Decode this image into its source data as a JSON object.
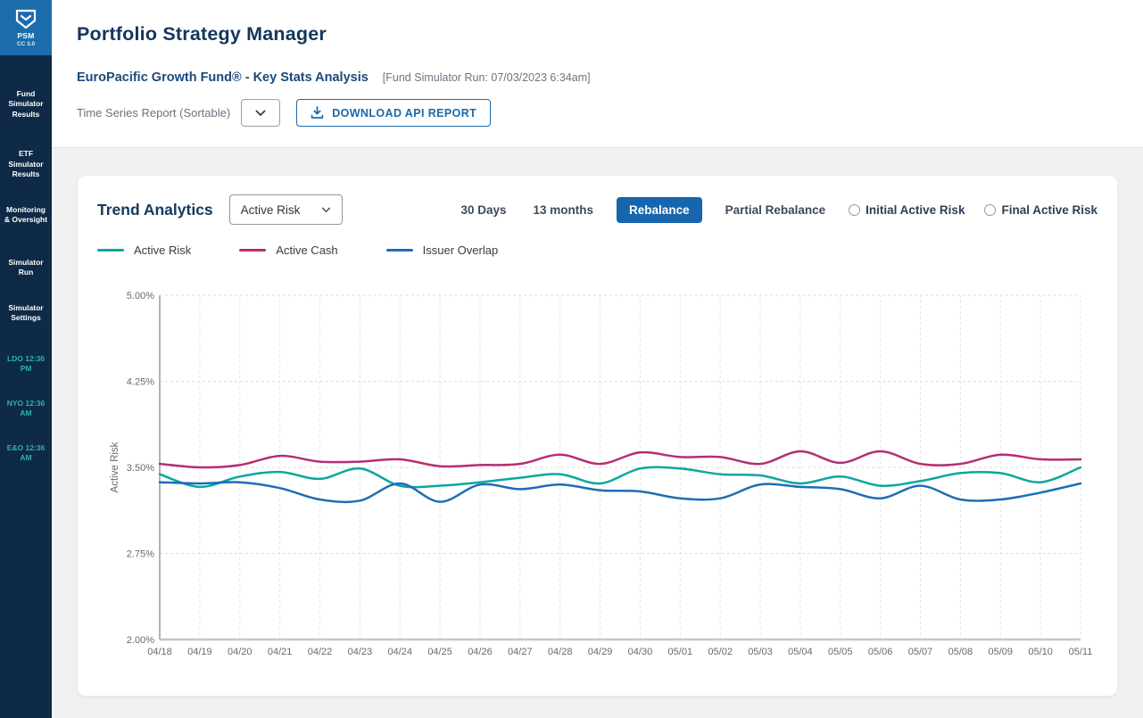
{
  "sidebar": {
    "logo": {
      "acronym": "PSM",
      "version": "CC 3.0"
    },
    "nav_items": [
      {
        "label": "Fund Simulator Results",
        "type": "nav"
      },
      {
        "label": "ETF Simulator Results",
        "type": "nav"
      },
      {
        "label": "Monitoring & Oversight",
        "type": "nav"
      },
      {
        "label": "Simulator Run",
        "type": "nav"
      },
      {
        "label": "Simulator Settings",
        "type": "nav"
      },
      {
        "label": "LDO 12:36 PM",
        "type": "clock"
      },
      {
        "label": "NYO 12:36 AM",
        "type": "clock"
      },
      {
        "label": "E&O 12:36 AM",
        "type": "clock"
      }
    ]
  },
  "header": {
    "title": "Portfolio Strategy Manager",
    "fund_name": "EuroPacific Growth Fund® - Key Stats Analysis",
    "run_info": "[Fund Simulator Run: 07/03/2023 6:34am]",
    "report_label": "Time Series Report (Sortable)",
    "download_button": "DOWNLOAD API REPORT"
  },
  "panel": {
    "title": "Trend Analytics",
    "metric_select": {
      "value": "Active Risk"
    },
    "toggles": [
      {
        "label": "30 Days",
        "active": false
      },
      {
        "label": "13 months",
        "active": false
      },
      {
        "label": "Rebalance",
        "active": true
      },
      {
        "label": "Partial Rebalance",
        "active": false
      }
    ],
    "radios": [
      {
        "label": "Initial Active Risk",
        "checked": false
      },
      {
        "label": "Final Active Risk",
        "checked": false
      }
    ]
  },
  "icons": {
    "logo": "shield-chevron",
    "download": "arrow-down-tray",
    "dropdown": "chevron-down"
  },
  "colors": {
    "sidebar_bg": "#0e2a47",
    "logo_bg": "#1b6cab",
    "accent_blue": "#1a6aad",
    "active_pill": "#1765ad",
    "title_navy": "#14365c",
    "clock_teal": "#2fb3ab",
    "series_active_risk": "#0ba79f",
    "series_active_cash": "#b52e72",
    "series_issuer_overlap": "#1e6db6"
  },
  "chart_data": {
    "type": "line",
    "title": "Trend Analytics",
    "x": [
      "04/18",
      "04/19",
      "04/20",
      "04/21",
      "04/22",
      "04/23",
      "04/24",
      "04/25",
      "04/26",
      "04/27",
      "04/28",
      "04/29",
      "04/30",
      "05/01",
      "05/02",
      "05/03",
      "05/04",
      "05/05",
      "05/06",
      "05/07",
      "05/08",
      "05/09",
      "05/10",
      "05/11"
    ],
    "series": [
      {
        "name": "Active Risk",
        "color": "#0ba79f",
        "values": [
          3.44,
          3.33,
          3.42,
          3.46,
          3.4,
          3.49,
          3.34,
          3.34,
          3.37,
          3.41,
          3.44,
          3.36,
          3.49,
          3.49,
          3.44,
          3.43,
          3.36,
          3.42,
          3.34,
          3.38,
          3.45,
          3.45,
          3.37,
          3.5
        ]
      },
      {
        "name": "Active Cash",
        "color": "#b52e72",
        "values": [
          3.53,
          3.5,
          3.52,
          3.6,
          3.55,
          3.55,
          3.57,
          3.51,
          3.52,
          3.53,
          3.61,
          3.53,
          3.63,
          3.59,
          3.59,
          3.53,
          3.64,
          3.54,
          3.64,
          3.53,
          3.53,
          3.61,
          3.57,
          3.57
        ]
      },
      {
        "name": "Issuer Overlap",
        "color": "#1e6db6",
        "values": [
          3.37,
          3.36,
          3.37,
          3.32,
          3.22,
          3.21,
          3.36,
          3.2,
          3.35,
          3.31,
          3.35,
          3.3,
          3.29,
          3.23,
          3.23,
          3.35,
          3.33,
          3.31,
          3.23,
          3.34,
          3.22,
          3.22,
          3.28,
          3.36
        ]
      }
    ],
    "xlabel": "",
    "ylabel": "Active Risk",
    "ylim": [
      2.0,
      5.0
    ],
    "yticks": [
      5.0,
      4.25,
      3.5,
      2.75,
      2.0
    ],
    "ytick_labels": [
      "5.00%",
      "4.25%",
      "3.50%",
      "2.75%",
      "2.00%"
    ],
    "grid": true,
    "grid_style": "dashed",
    "legend_position": "top-left"
  }
}
